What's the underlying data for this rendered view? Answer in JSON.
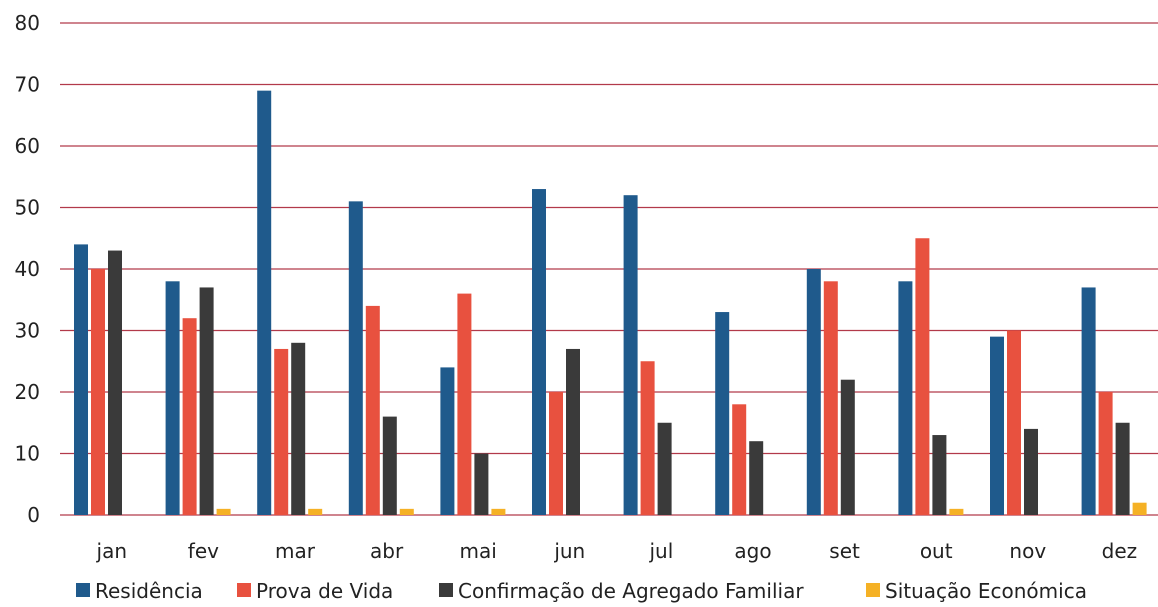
{
  "chart_data": {
    "type": "bar",
    "categories": [
      "jan",
      "fev",
      "mar",
      "abr",
      "mai",
      "jun",
      "jul",
      "ago",
      "set",
      "out",
      "nov",
      "dez"
    ],
    "series": [
      {
        "name": "Residência",
        "color": "#1f5a8c",
        "values": [
          44,
          38,
          69,
          51,
          24,
          53,
          52,
          33,
          40,
          38,
          29,
          37
        ]
      },
      {
        "name": "Prova de Vida",
        "color": "#e8513f",
        "values": [
          40,
          32,
          27,
          34,
          36,
          20,
          25,
          18,
          38,
          45,
          30,
          20
        ]
      },
      {
        "name": "Confirmação de Agregado Familiar",
        "color": "#3a3a3a",
        "values": [
          43,
          37,
          28,
          16,
          10,
          27,
          15,
          12,
          22,
          13,
          14,
          15
        ]
      },
      {
        "name": "Situação Económica",
        "color": "#f5b125",
        "values": [
          0,
          1,
          1,
          1,
          1,
          0,
          0,
          0,
          0,
          1,
          0,
          2
        ]
      }
    ],
    "ylim": [
      0,
      80
    ],
    "yticks": [
      "0",
      "10",
      "20",
      "30",
      "40",
      "50",
      "60",
      "70",
      "80"
    ],
    "grid": true,
    "grid_color": "#b23a4a",
    "legend_position": "bottom"
  }
}
